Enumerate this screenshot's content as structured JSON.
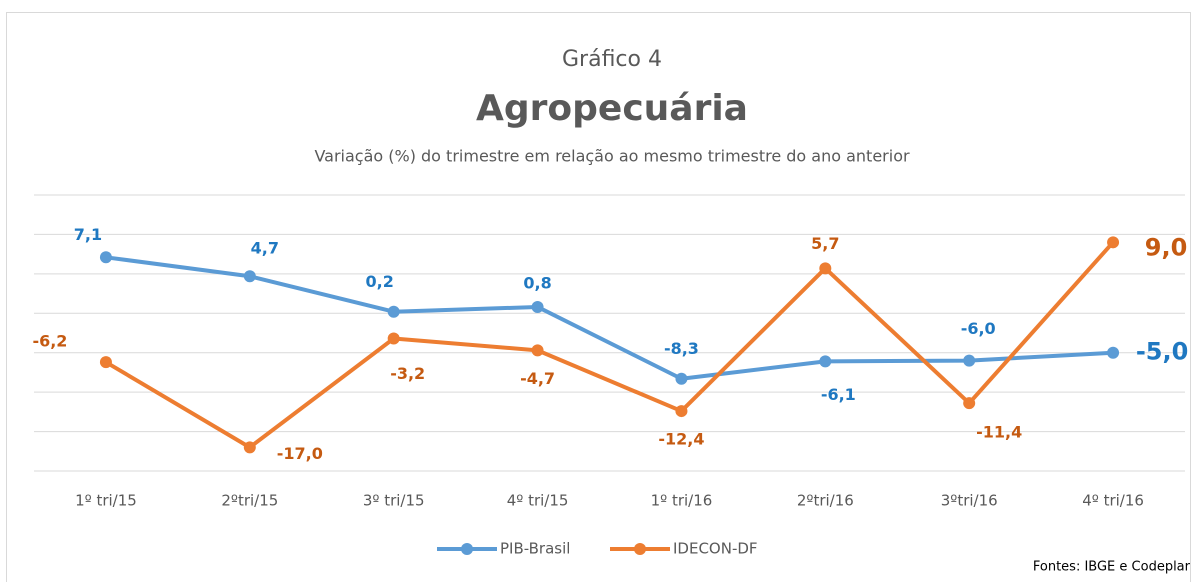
{
  "chart_data": {
    "type": "line",
    "title": "Gráfico 4",
    "subtitle": "Agropecuária",
    "description": "Variação (%) do trimestre em relação ao mesmo trimestre do ano anterior",
    "categories": [
      "1º tri/15",
      "2ºtri/15",
      "3º tri/15",
      "4º tri/15",
      "1º tri/16",
      "2ºtri/16",
      "3ºtri/16",
      "4º tri/16"
    ],
    "series": [
      {
        "name": "PIB-Brasil",
        "color": "#5b9bd5",
        "values": [
          7.1,
          4.7,
          0.2,
          0.8,
          -8.3,
          -6.1,
          -6.0,
          -5.0
        ],
        "value_labels": [
          "7,1",
          "4,7",
          "0,2",
          "0,8",
          "-8,3",
          "-6,1",
          "-6,0",
          "-5,0"
        ]
      },
      {
        "name": "IDECON-DF",
        "color": "#ed7d31",
        "values": [
          -6.2,
          -17.0,
          -3.2,
          -4.7,
          -12.4,
          5.7,
          -11.4,
          9.0
        ],
        "value_labels": [
          "-6,2",
          "-17,0",
          "-3,2",
          "-4,7",
          "-12,4",
          "5,7",
          "-11,4",
          "9,0"
        ]
      }
    ],
    "ylim": [
      -20,
      15
    ],
    "yticks": [
      -20,
      -15,
      -10,
      -5,
      0,
      5,
      10,
      15
    ],
    "grid": true,
    "legend": "bottom",
    "source": "Fontes: IBGE e Codeplar"
  }
}
